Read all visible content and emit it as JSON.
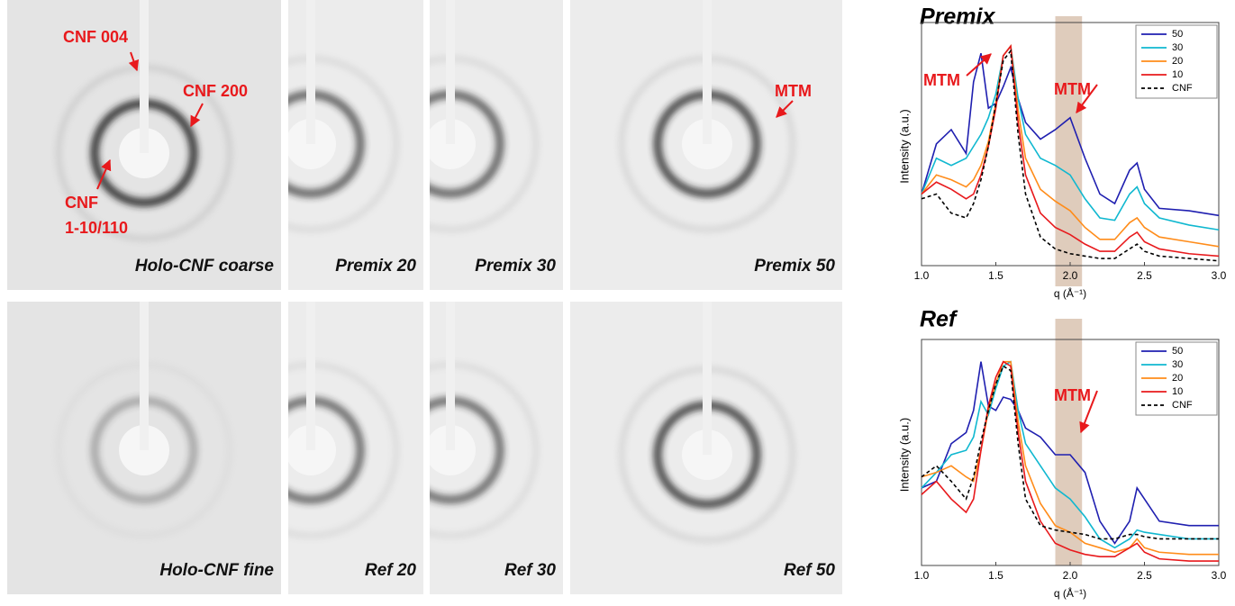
{
  "images": {
    "panels": [
      "Holo-CNF coarse",
      "Premix 20",
      "Premix 30",
      "Premix 50",
      "Holo-CNF fine",
      "Ref 20",
      "Ref 30",
      "Ref 50"
    ],
    "annotations": [
      "CNF 004",
      "CNF 200",
      "CNF",
      "1-10/110",
      "MTM"
    ]
  },
  "chart_data": [
    {
      "type": "line",
      "title": "Premix",
      "xlabel": "q (Å⁻¹)",
      "ylabel": "Intensity (a.u.)",
      "x": [
        1.0,
        1.1,
        1.2,
        1.3,
        1.35,
        1.4,
        1.45,
        1.5,
        1.55,
        1.6,
        1.65,
        1.7,
        1.8,
        1.9,
        2.0,
        2.1,
        2.2,
        2.3,
        2.4,
        2.45,
        2.5,
        2.6,
        2.8,
        3.0
      ],
      "xlim": [
        1,
        3
      ],
      "ylim": [
        0,
        1
      ],
      "xticks": [
        {
          "value": 1,
          "label": "1.0"
        },
        1.5,
        {
          "value": 2,
          "label": "2.0"
        },
        2.5,
        {
          "value": 3,
          "label": "3.0"
        }
      ],
      "highlight": [
        1.9,
        2.08
      ],
      "legend": "upper right",
      "annotations": [
        "MTM",
        "MTM"
      ],
      "series": [
        {
          "name": "50",
          "color": "#1f1fb0",
          "values": [
            0.3,
            0.51,
            0.57,
            0.47,
            0.77,
            0.89,
            0.66,
            0.68,
            0.75,
            0.83,
            0.7,
            0.6,
            0.53,
            0.57,
            0.62,
            0.45,
            0.3,
            0.26,
            0.4,
            0.43,
            0.32,
            0.24,
            0.23,
            0.21
          ]
        },
        {
          "name": "30",
          "color": "#10b8d0",
          "values": [
            0.3,
            0.45,
            0.42,
            0.45,
            0.5,
            0.55,
            0.62,
            0.72,
            0.88,
            0.92,
            0.7,
            0.55,
            0.45,
            0.42,
            0.38,
            0.28,
            0.2,
            0.19,
            0.3,
            0.33,
            0.26,
            0.2,
            0.17,
            0.15
          ]
        },
        {
          "name": "20",
          "color": "#ff8c1a",
          "values": [
            0.3,
            0.38,
            0.36,
            0.33,
            0.36,
            0.42,
            0.52,
            0.68,
            0.88,
            0.92,
            0.65,
            0.45,
            0.32,
            0.27,
            0.23,
            0.16,
            0.11,
            0.11,
            0.18,
            0.2,
            0.16,
            0.12,
            0.1,
            0.08
          ]
        },
        {
          "name": "10",
          "color": "#e8191c",
          "values": [
            0.3,
            0.35,
            0.32,
            0.28,
            0.3,
            0.38,
            0.5,
            0.66,
            0.88,
            0.92,
            0.6,
            0.38,
            0.22,
            0.16,
            0.13,
            0.09,
            0.06,
            0.06,
            0.12,
            0.14,
            0.1,
            0.07,
            0.05,
            0.04
          ]
        },
        {
          "name": "CNF",
          "color": "#000000",
          "dashed": true,
          "values": [
            0.28,
            0.3,
            0.22,
            0.2,
            0.26,
            0.36,
            0.5,
            0.68,
            0.86,
            0.9,
            0.55,
            0.3,
            0.12,
            0.07,
            0.05,
            0.04,
            0.03,
            0.03,
            0.07,
            0.09,
            0.06,
            0.04,
            0.03,
            0.02
          ]
        }
      ]
    },
    {
      "type": "line",
      "title": "Ref",
      "xlabel": "q (Å⁻¹)",
      "ylabel": "Intensity (a.u.)",
      "x": [
        1.0,
        1.1,
        1.2,
        1.3,
        1.35,
        1.4,
        1.45,
        1.5,
        1.55,
        1.6,
        1.65,
        1.7,
        1.8,
        1.9,
        2.0,
        2.1,
        2.2,
        2.3,
        2.4,
        2.45,
        2.5,
        2.6,
        2.8,
        3.0
      ],
      "xlim": [
        1,
        3
      ],
      "ylim": [
        0,
        1
      ],
      "xticks": [
        {
          "value": 1,
          "label": "1.0"
        },
        1.5,
        {
          "value": 2,
          "label": "2.0"
        },
        2.5,
        {
          "value": 3,
          "label": "3.0"
        }
      ],
      "highlight": [
        1.9,
        2.08
      ],
      "legend": "upper right",
      "annotations": [
        "MTM"
      ],
      "series": [
        {
          "name": "50",
          "color": "#1f1fb0",
          "values": [
            0.35,
            0.38,
            0.55,
            0.6,
            0.7,
            0.92,
            0.72,
            0.7,
            0.76,
            0.75,
            0.7,
            0.62,
            0.58,
            0.5,
            0.5,
            0.42,
            0.2,
            0.1,
            0.2,
            0.35,
            0.3,
            0.2,
            0.18,
            0.18
          ]
        },
        {
          "name": "30",
          "color": "#10b8d0",
          "values": [
            0.35,
            0.42,
            0.5,
            0.52,
            0.58,
            0.74,
            0.68,
            0.8,
            0.9,
            0.92,
            0.7,
            0.55,
            0.45,
            0.35,
            0.3,
            0.22,
            0.12,
            0.08,
            0.12,
            0.16,
            0.15,
            0.14,
            0.12,
            0.12
          ]
        },
        {
          "name": "20",
          "color": "#ff8c1a",
          "values": [
            0.4,
            0.42,
            0.45,
            0.4,
            0.38,
            0.52,
            0.7,
            0.82,
            0.92,
            0.92,
            0.65,
            0.45,
            0.28,
            0.18,
            0.15,
            0.1,
            0.08,
            0.06,
            0.08,
            0.12,
            0.08,
            0.06,
            0.05,
            0.05
          ]
        },
        {
          "name": "10",
          "color": "#e8191c",
          "values": [
            0.32,
            0.38,
            0.3,
            0.24,
            0.3,
            0.52,
            0.72,
            0.85,
            0.92,
            0.9,
            0.6,
            0.38,
            0.2,
            0.1,
            0.07,
            0.05,
            0.04,
            0.04,
            0.08,
            0.1,
            0.06,
            0.03,
            0.02,
            0.02
          ]
        },
        {
          "name": "CNF",
          "color": "#000000",
          "dashed": true,
          "values": [
            0.4,
            0.45,
            0.38,
            0.3,
            0.4,
            0.56,
            0.7,
            0.82,
            0.9,
            0.88,
            0.55,
            0.3,
            0.18,
            0.16,
            0.15,
            0.14,
            0.12,
            0.12,
            0.14,
            0.14,
            0.13,
            0.12,
            0.12,
            0.12
          ]
        }
      ]
    }
  ]
}
